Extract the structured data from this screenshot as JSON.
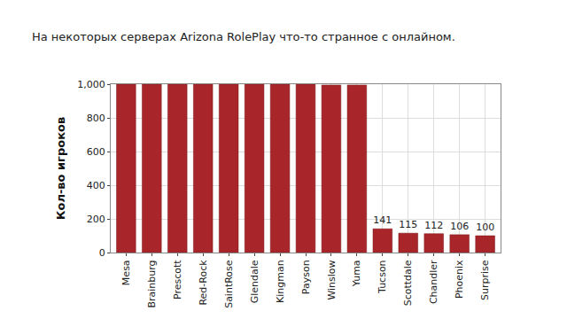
{
  "chart_data": {
    "type": "bar",
    "title": "На некоторых серверах Arizona RolePlay что-то странное с онлайном.",
    "y_label": "Кол-во игроков",
    "categories": [
      "Mesa",
      "Brainburg",
      "Prescott",
      "Red-Rock",
      "SaintRose",
      "Glendale",
      "Kingman",
      "Payson",
      "Winslow",
      "Yuma",
      "Tucson",
      "Scottdale",
      "Chandler",
      "Phoenix",
      "Surprise"
    ],
    "values": [
      1000,
      1000,
      1000,
      1000,
      1000,
      1000,
      1000,
      1000,
      995,
      995,
      141,
      115,
      112,
      106,
      100
    ],
    "value_labels": [
      null,
      null,
      null,
      null,
      null,
      null,
      null,
      null,
      null,
      null,
      "141",
      "115",
      "112",
      "106",
      "100"
    ],
    "data_labels": true,
    "color": "#a8262a",
    "ylim": [
      0,
      1000
    ],
    "yticks": [
      0,
      200,
      400,
      600,
      800,
      {
        "value": 1000,
        "label": "1,000"
      }
    ],
    "grid": true
  }
}
